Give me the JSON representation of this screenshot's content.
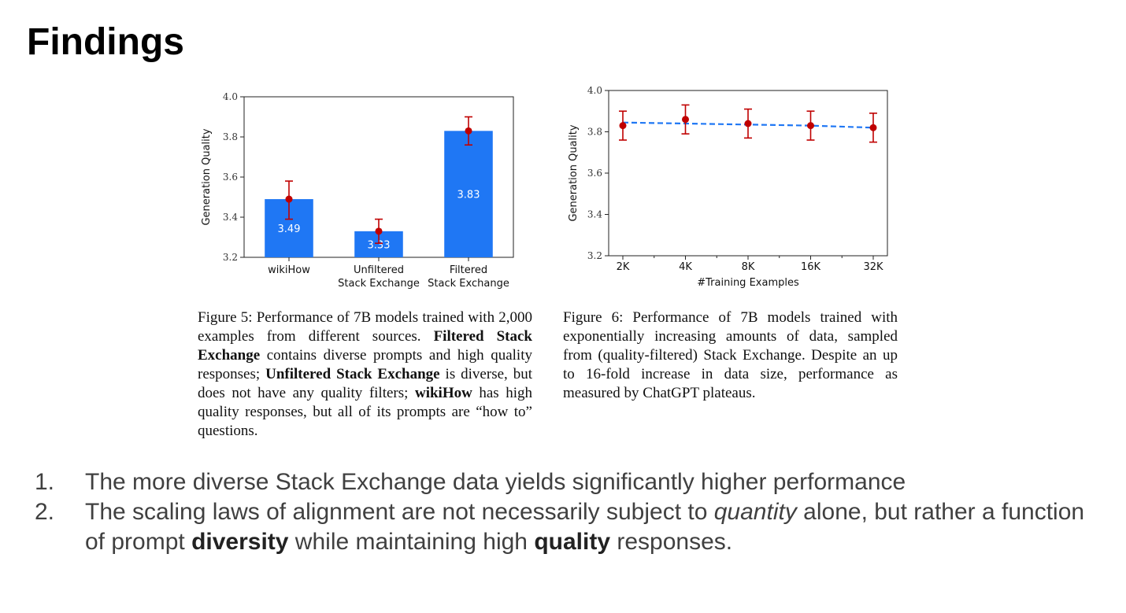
{
  "slide": {
    "title": "Findings"
  },
  "chart_data": [
    {
      "id": "fig5",
      "type": "bar",
      "title": "",
      "xlabel": "",
      "ylabel": "Generation Quality",
      "ylim": [
        3.2,
        4.0
      ],
      "yticks": [
        "3.2",
        "3.4",
        "3.6",
        "3.8",
        "4.0"
      ],
      "categories": [
        [
          "wikiHow"
        ],
        [
          "Unfiltered",
          "Stack Exchange"
        ],
        [
          "Filtered",
          "Stack Exchange"
        ]
      ],
      "values": [
        3.49,
        3.33,
        3.83
      ],
      "value_labels": [
        "3.49",
        "3.33",
        "3.83"
      ],
      "error_low": [
        3.39,
        3.27,
        3.76
      ],
      "error_high": [
        3.58,
        3.39,
        3.9
      ],
      "grid": false,
      "bar_color": "#1f77f4",
      "error_color": "#c00000"
    },
    {
      "id": "fig6",
      "type": "line",
      "title": "",
      "xlabel": "#Training Examples",
      "ylabel": "Generation Quality",
      "ylim": [
        3.2,
        4.0
      ],
      "yticks": [
        "3.2",
        "3.4",
        "3.6",
        "3.8",
        "4.0"
      ],
      "x": [
        "2K",
        "4K",
        "8K",
        "16K",
        "32K"
      ],
      "values": [
        3.83,
        3.86,
        3.84,
        3.83,
        3.82
      ],
      "trend": [
        3.845,
        3.84,
        3.835,
        3.83,
        3.82
      ],
      "error_low": [
        3.76,
        3.79,
        3.77,
        3.76,
        3.75
      ],
      "error_high": [
        3.9,
        3.93,
        3.91,
        3.9,
        3.89
      ],
      "grid": false,
      "line_color": "#1f77f4",
      "marker_color": "#c00000"
    }
  ],
  "captions": {
    "fig5": [
      {
        "text": "Figure 5: Performance of 7B models trained with 2,000 examples from different sources. ",
        "bold": false
      },
      {
        "text": "Filtered Stack Exchange",
        "bold": true
      },
      {
        "text": " contains diverse prompts and high quality responses; ",
        "bold": false
      },
      {
        "text": "Unfiltered Stack Exchange",
        "bold": true
      },
      {
        "text": " is diverse, but does not have any quality filters; ",
        "bold": false
      },
      {
        "text": "wikiHow",
        "bold": true
      },
      {
        "text": " has high quality responses, but all of its prompts are “how to” questions.",
        "bold": false
      }
    ],
    "fig6": [
      {
        "text": "Figure 6: Performance of 7B models trained with exponentially increasing amounts of data, sampled from (quality-filtered) Stack Exchange. Despite an up to 16-fold increase in data size, performance as measured by ChatGPT plateaus.",
        "bold": false
      }
    ]
  },
  "findings": [
    {
      "number": "1.",
      "segments": [
        {
          "text": "The more diverse Stack Exchange data yields significantly higher performance",
          "style": "normal"
        }
      ]
    },
    {
      "number": "2.",
      "segments": [
        {
          "text": "The scaling laws of alignment are not necessarily subject to ",
          "style": "normal"
        },
        {
          "text": "quantity",
          "style": "italic"
        },
        {
          "text": " alone, but rather a function of prompt ",
          "style": "normal"
        },
        {
          "text": "diversity",
          "style": "bold"
        },
        {
          "text": " while maintaining high ",
          "style": "normal"
        },
        {
          "text": "quality",
          "style": "bold"
        },
        {
          "text": " responses.",
          "style": "normal"
        }
      ]
    }
  ]
}
